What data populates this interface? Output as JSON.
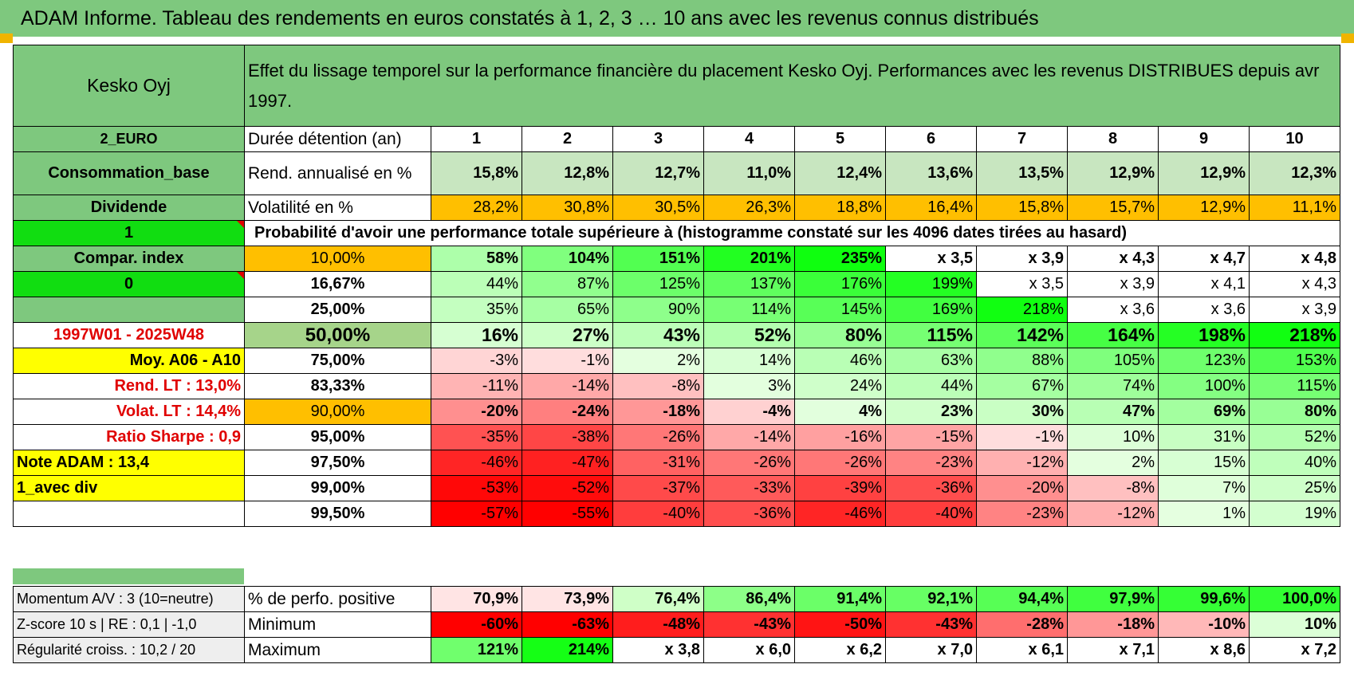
{
  "title": "ADAM Informe. Tableau des rendements en euros constatés à 1, 2, 3 … 10 ans avec les revenus connus distribués",
  "header": {
    "name": "Kesko Oyj",
    "description": "Effet du lissage temporel sur la performance financière du placement Kesko Oyj. Performances avec les revenus DISTRIBUES depuis avr 1997."
  },
  "years_label": "Durée détention (an)",
  "years": [
    "1",
    "2",
    "3",
    "4",
    "5",
    "6",
    "7",
    "8",
    "9",
    "10"
  ],
  "rend": {
    "label": "Rend. annualisé en %",
    "values": [
      "15,8%",
      "12,8%",
      "12,7%",
      "11,0%",
      "12,4%",
      "13,6%",
      "13,5%",
      "12,9%",
      "12,9%",
      "12,3%"
    ]
  },
  "vol": {
    "label": "Volatilité en %",
    "values": [
      "28,2%",
      "30,8%",
      "30,5%",
      "26,3%",
      "18,8%",
      "16,4%",
      "15,8%",
      "15,7%",
      "12,9%",
      "11,1%"
    ]
  },
  "prob_title": "Probabilité d'avoir une performance totale supérieure à (histogramme constaté sur les 4096 dates tirées au hasard)",
  "left_labels": [
    "2_EURO",
    "Consommation_base",
    "Dividende",
    "1",
    "Compar. index",
    "0",
    "",
    "1997W01 - 2025W48",
    "Moy. A06 - A10",
    "Rend. LT :    13,0%",
    "Volat. LT :    14,4%",
    "Ratio Sharpe :    0,9",
    "Note ADAM : 13,4",
    "1_avec div",
    ""
  ],
  "rows": [
    {
      "pct": "10,00%",
      "values": [
        "58%",
        "104%",
        "151%",
        "201%",
        "235%",
        "x 3,5",
        "x 3,9",
        "x 4,3",
        "x 4,7",
        "x 4,8"
      ]
    },
    {
      "pct": "16,67%",
      "values": [
        "44%",
        "87%",
        "125%",
        "137%",
        "176%",
        "199%",
        "x 3,5",
        "x 3,9",
        "x 4,1",
        "x 4,3"
      ]
    },
    {
      "pct": "25,00%",
      "values": [
        "35%",
        "65%",
        "90%",
        "114%",
        "145%",
        "169%",
        "218%",
        "x 3,6",
        "x 3,6",
        "x 3,9"
      ]
    },
    {
      "pct": "50,00%",
      "values": [
        "16%",
        "27%",
        "43%",
        "52%",
        "80%",
        "115%",
        "142%",
        "164%",
        "198%",
        "218%"
      ]
    },
    {
      "pct": "75,00%",
      "values": [
        "-3%",
        "-1%",
        "2%",
        "14%",
        "46%",
        "63%",
        "88%",
        "105%",
        "123%",
        "153%"
      ]
    },
    {
      "pct": "83,33%",
      "values": [
        "-11%",
        "-14%",
        "-8%",
        "3%",
        "24%",
        "44%",
        "67%",
        "74%",
        "100%",
        "115%"
      ]
    },
    {
      "pct": "90,00%",
      "values": [
        "-20%",
        "-24%",
        "-18%",
        "-4%",
        "4%",
        "23%",
        "30%",
        "47%",
        "69%",
        "80%"
      ]
    },
    {
      "pct": "95,00%",
      "values": [
        "-35%",
        "-38%",
        "-26%",
        "-14%",
        "-16%",
        "-15%",
        "-1%",
        "10%",
        "31%",
        "52%"
      ]
    },
    {
      "pct": "97,50%",
      "values": [
        "-46%",
        "-47%",
        "-31%",
        "-26%",
        "-26%",
        "-23%",
        "-12%",
        "2%",
        "15%",
        "40%"
      ]
    },
    {
      "pct": "99,00%",
      "values": [
        "-53%",
        "-52%",
        "-37%",
        "-33%",
        "-39%",
        "-36%",
        "-20%",
        "-8%",
        "7%",
        "25%"
      ]
    },
    {
      "pct": "99,50%",
      "values": [
        "-57%",
        "-55%",
        "-40%",
        "-36%",
        "-46%",
        "-40%",
        "-23%",
        "-12%",
        "1%",
        "19%"
      ]
    }
  ],
  "bottom": [
    {
      "left": "Momentum A/V : 3 (10=neutre)",
      "label": "% de perfo. positive",
      "values": [
        "70,9%",
        "73,9%",
        "76,4%",
        "86,4%",
        "91,4%",
        "92,1%",
        "94,4%",
        "97,9%",
        "99,6%",
        "100,0%"
      ]
    },
    {
      "left": "Z-score 10 s | RE : 0,1 | -1,0",
      "label": "Minimum",
      "values": [
        "-60%",
        "-63%",
        "-48%",
        "-43%",
        "-50%",
        "-43%",
        "-28%",
        "-18%",
        "-10%",
        "10%"
      ]
    },
    {
      "left": "Régularité croiss. : 10,2 / 20",
      "label": "Maximum",
      "values": [
        "121%",
        "214%",
        "x 3,8",
        "x 6,0",
        "x 6,2",
        "x 7,0",
        "x 6,1",
        "x 7,1",
        "x 8,6",
        "x 7,2"
      ]
    }
  ],
  "colors": {
    "header_green": "#7ec87e",
    "highlight_orange": "#ffbf00",
    "highlight_yellow": "#ffff00",
    "bright_green": "#11dd11",
    "negative_red": "#f80000",
    "positive_green": "#33ee33"
  }
}
